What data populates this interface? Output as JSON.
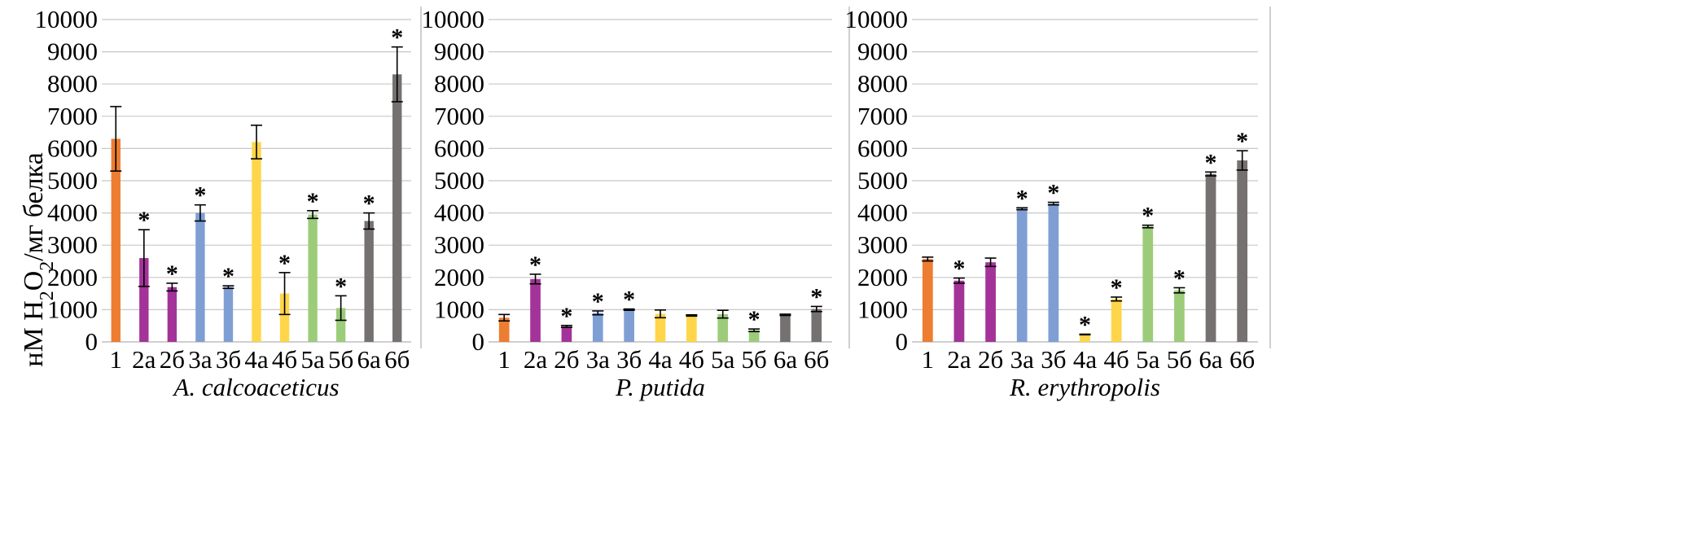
{
  "ylabel": {
    "main": "нМ H",
    "sub1": "2",
    "mid": "O",
    "sub2": "2",
    "tail": "/мг белка"
  },
  "categories": [
    "1",
    "2а",
    "2б",
    "3а",
    "3б",
    "4а",
    "4б",
    "5а",
    "5б",
    "6а",
    "6б"
  ],
  "colors": [
    "#ED7D31",
    "#A33399",
    "#A33399",
    "#7F9FD4",
    "#7F9FD4",
    "#FFD54A",
    "#FFD54A",
    "#9CCC7A",
    "#9CCC7A",
    "#767171",
    "#767171"
  ],
  "chart_data": [
    {
      "type": "bar",
      "title": "A. calcoaceticus",
      "ylim": [
        0,
        10000
      ],
      "yticks": [
        0,
        1000,
        2000,
        3000,
        4000,
        5000,
        6000,
        7000,
        8000,
        9000,
        10000
      ],
      "categories": [
        "1",
        "2а",
        "2б",
        "3а",
        "3б",
        "4а",
        "4б",
        "5а",
        "5б",
        "6а",
        "6б"
      ],
      "values": [
        6300,
        2600,
        1700,
        4000,
        1700,
        6200,
        1500,
        3950,
        1050,
        3750,
        8300
      ],
      "errors": [
        1000,
        880,
        120,
        250,
        40,
        520,
        650,
        120,
        380,
        250,
        850
      ],
      "significant": [
        false,
        true,
        true,
        true,
        true,
        false,
        true,
        true,
        true,
        true,
        true
      ]
    },
    {
      "type": "bar",
      "title": "P. putida",
      "ylim": [
        0,
        10000
      ],
      "yticks": [
        0,
        1000,
        2000,
        3000,
        4000,
        5000,
        6000,
        7000,
        8000,
        9000,
        10000
      ],
      "categories": [
        "1",
        "2а",
        "2б",
        "3а",
        "3б",
        "4а",
        "4б",
        "5а",
        "5б",
        "6а",
        "6б"
      ],
      "values": [
        750,
        1950,
        480,
        900,
        1000,
        870,
        820,
        860,
        360,
        840,
        1020
      ],
      "errors": [
        100,
        150,
        30,
        60,
        20,
        120,
        20,
        120,
        40,
        20,
        80
      ],
      "significant": [
        false,
        true,
        true,
        true,
        true,
        false,
        false,
        false,
        true,
        false,
        true
      ]
    },
    {
      "type": "bar",
      "title": "R. erythropolis",
      "ylim": [
        0,
        10000
      ],
      "yticks": [
        0,
        1000,
        2000,
        3000,
        4000,
        5000,
        6000,
        7000,
        8000,
        9000,
        10000
      ],
      "categories": [
        "1",
        "2а",
        "2б",
        "3а",
        "3б",
        "4а",
        "4б",
        "5а",
        "5б",
        "6а",
        "6б"
      ],
      "values": [
        2570,
        1900,
        2470,
        4130,
        4290,
        230,
        1330,
        3580,
        1600,
        5210,
        5630
      ],
      "errors": [
        60,
        80,
        130,
        30,
        40,
        10,
        60,
        40,
        80,
        60,
        300
      ],
      "significant": [
        false,
        true,
        false,
        true,
        true,
        true,
        true,
        true,
        true,
        true,
        true
      ]
    }
  ]
}
